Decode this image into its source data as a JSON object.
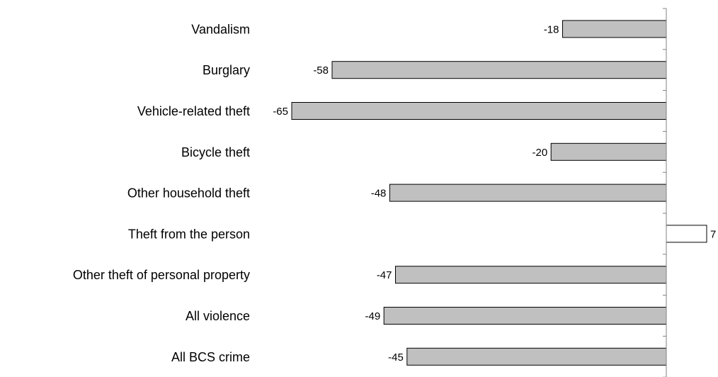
{
  "chart_data": {
    "type": "bar",
    "orientation": "horizontal",
    "categories": [
      "Vandalism",
      "Burglary",
      "Vehicle-related theft",
      "Bicycle theft",
      "Other household theft",
      "Theft from the person",
      "Other theft of personal property",
      "All violence",
      "All BCS crime"
    ],
    "values": [
      -18,
      -58,
      -65,
      -20,
      -48,
      7,
      -47,
      -49,
      -45
    ],
    "value_labels": [
      "-18",
      "-58",
      "-65",
      "-20",
      "-48",
      "7",
      "-47",
      "-49",
      "-45"
    ],
    "title": "",
    "xlabel": "",
    "ylabel": "",
    "xlim": [
      -65,
      7
    ],
    "grid": false,
    "legend": "none",
    "colors": {
      "negative": "#c0c0c0",
      "positive": "#ffffff",
      "stroke": "#000000",
      "axis": "#808080"
    }
  }
}
